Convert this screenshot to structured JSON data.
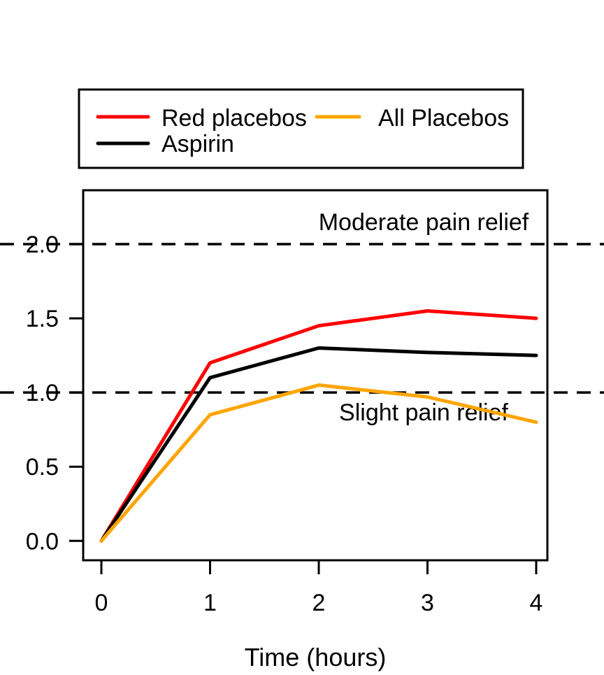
{
  "chart_data": {
    "type": "line",
    "title": "",
    "xlabel": "Time (hours)",
    "ylabel": "",
    "x": [
      0,
      1,
      2,
      3,
      4
    ],
    "x_ticks": {
      "values": [
        0,
        1,
        2,
        3,
        4
      ],
      "labels": [
        "0",
        "1",
        "2",
        "3",
        "4"
      ]
    },
    "y_ticks": {
      "values": [
        0,
        0.5,
        1,
        1.5,
        2
      ],
      "labels": [
        "0.0",
        "0.5",
        "1.0",
        "1.5",
        "2.0"
      ]
    },
    "xlim": [
      -0.17,
      4.1
    ],
    "ylim": [
      -0.13,
      2.36
    ],
    "grid": false,
    "legend_position": "top-left-box",
    "series": [
      {
        "name": "Red placebos",
        "color": "#FF0000",
        "values": [
          0,
          1.2,
          1.45,
          1.55,
          1.5
        ]
      },
      {
        "name": "Aspirin",
        "color": "#000000",
        "values": [
          0,
          1.1,
          1.3,
          1.27,
          1.25
        ]
      },
      {
        "name": "All Placebos",
        "color": "#FFA500",
        "values": [
          0,
          0.85,
          1.05,
          0.97,
          0.8
        ]
      }
    ],
    "reference_lines": [
      {
        "value": 2.0,
        "label": "Moderate pain relief",
        "style": "dashed",
        "color": "#000000"
      },
      {
        "value": 1.0,
        "label": "Slight pain relief",
        "style": "dashed",
        "color": "#000000"
      }
    ]
  }
}
